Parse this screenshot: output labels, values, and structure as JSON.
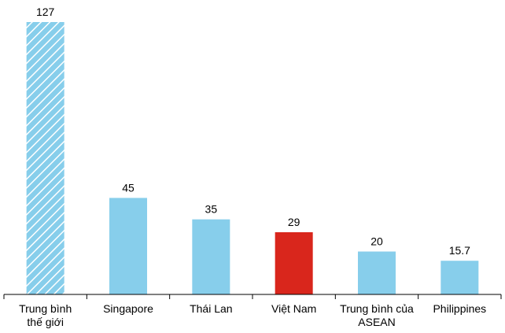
{
  "chart_data": {
    "type": "bar",
    "categories": [
      "Trung bình\nthế giới",
      "Singapore",
      "Thái Lan",
      "Việt Nam",
      "Trung bình của\nASEAN",
      "Philippines"
    ],
    "values": [
      127,
      45,
      35,
      29,
      20,
      15.7
    ],
    "colors": [
      "#87ceeb",
      "#87ceeb",
      "#87ceeb",
      "#d9261c",
      "#87ceeb",
      "#87ceeb"
    ],
    "patterns": [
      "diagonal-stripes",
      "solid",
      "solid",
      "solid",
      "solid",
      "solid"
    ],
    "ylim": [
      0,
      127
    ]
  }
}
